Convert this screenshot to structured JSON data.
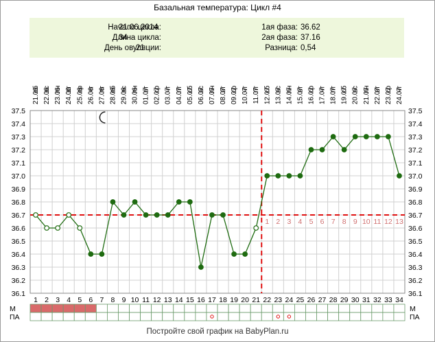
{
  "header": {
    "title": "Базальная температура: Цикл #4"
  },
  "info": {
    "left": [
      {
        "label": "Начало цикла:",
        "value": "21.06.2014"
      },
      {
        "label": "Длина цикла:",
        "value": "34"
      },
      {
        "label": "День овуляции:",
        "value": "21"
      }
    ],
    "right": [
      {
        "label": "1ая фаза:",
        "value": "36.62"
      },
      {
        "label": "2ая фаза:",
        "value": "37.16"
      },
      {
        "label": "Разница:",
        "value": "0,54"
      }
    ]
  },
  "footer": {
    "text": "Постройте свой график на BabyPlan.ru"
  },
  "colors": {
    "line": "#1e6b10",
    "coverline": "#e01010",
    "menses": "#d96a6a",
    "grid": "#d0d0d0",
    "phase_count": "#d07070",
    "info_bg": "#eef7dc"
  },
  "chart_data": {
    "type": "line",
    "title": "Базальная температура: Цикл #4",
    "x": [
      1,
      2,
      3,
      4,
      5,
      6,
      7,
      8,
      9,
      10,
      11,
      12,
      13,
      14,
      15,
      16,
      17,
      18,
      19,
      20,
      21,
      22,
      23,
      24,
      25,
      26,
      27,
      28,
      29,
      30,
      31,
      32,
      33,
      34
    ],
    "dates": [
      "21.06",
      "22.06",
      "23.06",
      "24.06",
      "25.06",
      "26.06",
      "27.06",
      "28.06",
      "29.06",
      "30.06",
      "01.07",
      "02.07",
      "03.07",
      "04.07",
      "05.07",
      "06.07",
      "07.07",
      "08.07",
      "09.07",
      "10.07",
      "11.07",
      "12.07",
      "13.07",
      "14.07",
      "15.07",
      "16.07",
      "17.07",
      "18.07",
      "19.07",
      "20.07",
      "21.07",
      "22.07",
      "23.07",
      "24.07"
    ],
    "weekdays": [
      "сб",
      "вс",
      "пн",
      "вт",
      "ср",
      "чт",
      "пт",
      "сб",
      "вс",
      "пн",
      "вт",
      "ср",
      "чт",
      "пт",
      "сб",
      "вс",
      "пн",
      "вт",
      "ср",
      "чт",
      "пт",
      "сб",
      "вс",
      "пн",
      "вт",
      "ср",
      "чт",
      "пт",
      "сб",
      "вс",
      "пн",
      "вт",
      "ср",
      "чт"
    ],
    "y": [
      36.7,
      36.6,
      36.6,
      36.7,
      36.6,
      36.4,
      36.4,
      36.8,
      36.7,
      36.8,
      36.7,
      36.7,
      36.7,
      36.8,
      36.8,
      36.3,
      36.7,
      36.7,
      36.4,
      36.4,
      36.6,
      37.0,
      37.0,
      37.0,
      37.0,
      37.2,
      37.2,
      37.3,
      37.2,
      37.3,
      37.3,
      37.3,
      37.3,
      37.0
    ],
    "hollow_points": [
      1,
      2,
      3,
      4,
      5,
      21
    ],
    "ylim": [
      36.1,
      37.5
    ],
    "yticks": [
      "36.1",
      "36.2",
      "36.3",
      "36.4",
      "36.5",
      "36.6",
      "36.7",
      "36.8",
      "36.9",
      "37.0",
      "37.1",
      "37.2",
      "37.3",
      "37.4",
      "37.5"
    ],
    "coverline": 36.7,
    "ovulation_day": 21,
    "phase2_counts": [
      "1",
      "2",
      "3",
      "4",
      "5",
      "6",
      "7",
      "8",
      "9",
      "10",
      "11",
      "12",
      "13"
    ],
    "phase2_count_start_day": 22,
    "moon_day": 7,
    "menses_days": [
      1,
      2,
      3,
      4,
      5,
      6
    ],
    "pa_days": [
      17,
      23,
      24
    ],
    "row_labels": {
      "m": "М",
      "pa": "ПА"
    }
  }
}
